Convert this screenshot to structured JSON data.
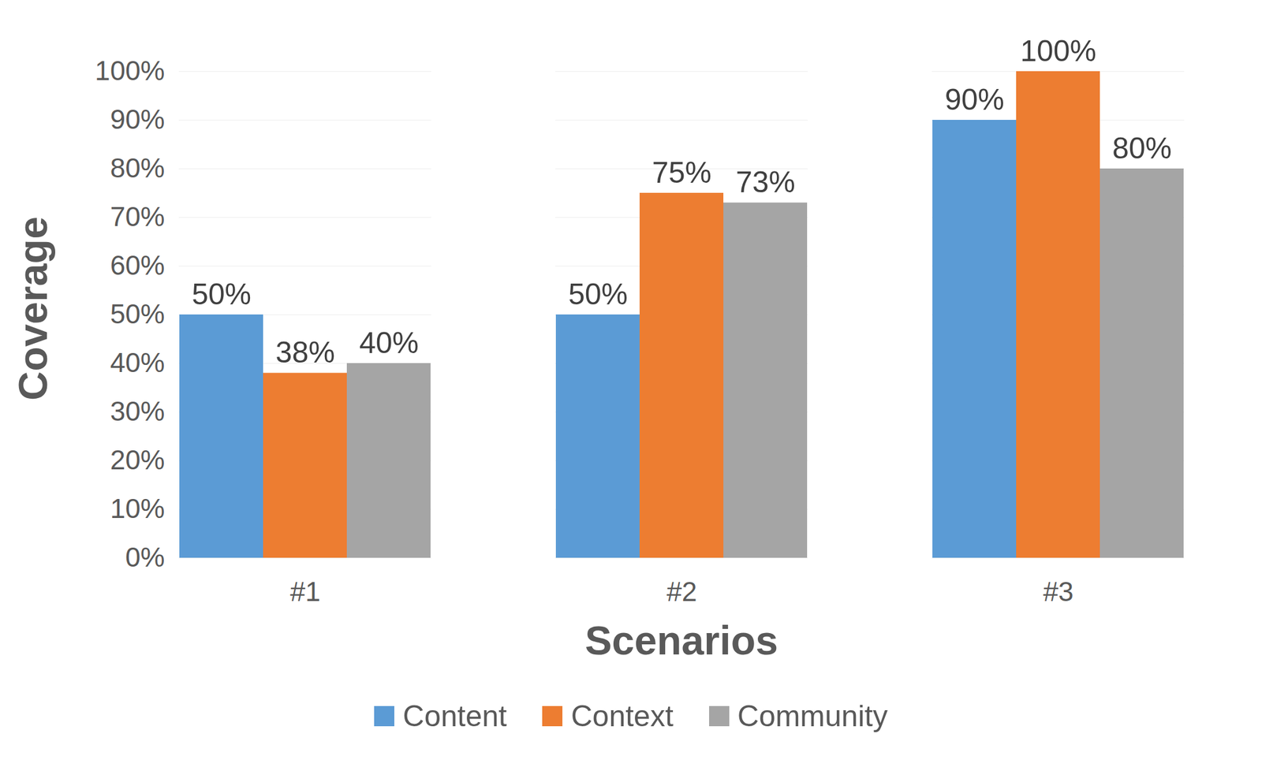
{
  "chart_data": {
    "type": "bar",
    "x_label": "Scenarios",
    "y_label": "Coverage",
    "categories": [
      "#1",
      "#2",
      "#3"
    ],
    "series": [
      {
        "name": "Content",
        "color": "#5b9bd5",
        "values": [
          50,
          50,
          90
        ],
        "value_labels": [
          "50%",
          "50%",
          "90%"
        ]
      },
      {
        "name": "Context",
        "color": "#ed7d31",
        "values": [
          38,
          75,
          100
        ],
        "value_labels": [
          "38%",
          "75%",
          "100%"
        ]
      },
      {
        "name": "Community",
        "color": "#a5a5a5",
        "values": [
          40,
          73,
          80
        ],
        "value_labels": [
          "40%",
          "73%",
          "80%"
        ]
      }
    ],
    "ylim": [
      0,
      100
    ],
    "yticks": [
      {
        "value": 0,
        "label": "0%"
      },
      {
        "value": 10,
        "label": "10%"
      },
      {
        "value": 20,
        "label": "20%"
      },
      {
        "value": 30,
        "label": "30%"
      },
      {
        "value": 40,
        "label": "40%"
      },
      {
        "value": 50,
        "label": "50%"
      },
      {
        "value": 60,
        "label": "60%"
      },
      {
        "value": 70,
        "label": "70%"
      },
      {
        "value": 80,
        "label": "80%"
      },
      {
        "value": 90,
        "label": "90%"
      },
      {
        "value": 100,
        "label": "100%"
      }
    ],
    "grid": true,
    "data_labels": true,
    "legend": "bottom"
  }
}
